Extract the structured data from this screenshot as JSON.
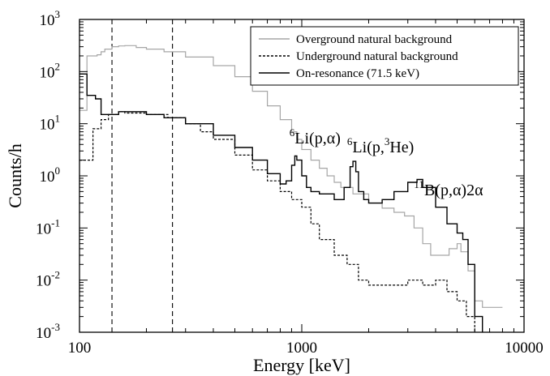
{
  "chart_data": {
    "type": "line",
    "title": "",
    "xlabel": "Energy [keV]",
    "ylabel": "Counts/h",
    "x_scale": "log",
    "y_scale": "log",
    "xlim": [
      100,
      10000
    ],
    "ylim": [
      0.001,
      1000
    ],
    "x_ticks": [
      {
        "value": 100,
        "label": "100"
      },
      {
        "value": 1000,
        "label": "1000"
      },
      {
        "value": 10000,
        "label": "10000"
      }
    ],
    "y_ticks": [
      {
        "value": 0.001,
        "base": "10",
        "exp": "-3"
      },
      {
        "value": 0.01,
        "base": "10",
        "exp": "-2"
      },
      {
        "value": 0.1,
        "base": "10",
        "exp": "-1"
      },
      {
        "value": 1,
        "base": "10",
        "exp": "0"
      },
      {
        "value": 10,
        "base": "10",
        "exp": "1"
      },
      {
        "value": 100,
        "base": "10",
        "exp": "2"
      },
      {
        "value": 1000,
        "base": "10",
        "exp": "3"
      }
    ],
    "grid": false,
    "legend_position": "top-right",
    "vertical_lines": [
      {
        "x": 140,
        "style": "dashed"
      },
      {
        "x": 262,
        "style": "dashed"
      }
    ],
    "series": [
      {
        "name": "Overground natural background",
        "color": "#a6a6a6",
        "dash": "solid",
        "points": [
          [
            100,
            18
          ],
          [
            108,
            200
          ],
          [
            118,
            200
          ],
          [
            120,
            210
          ],
          [
            125,
            240
          ],
          [
            130,
            270
          ],
          [
            140,
            300
          ],
          [
            150,
            310
          ],
          [
            160,
            315
          ],
          [
            180,
            290
          ],
          [
            200,
            270
          ],
          [
            240,
            240
          ],
          [
            300,
            190
          ],
          [
            400,
            130
          ],
          [
            500,
            80
          ],
          [
            600,
            42
          ],
          [
            700,
            22
          ],
          [
            800,
            12
          ],
          [
            900,
            7
          ],
          [
            950,
            5
          ],
          [
            1000,
            3.2
          ],
          [
            1100,
            2.0
          ],
          [
            1200,
            1.4
          ],
          [
            1300,
            1.0
          ],
          [
            1400,
            0.75
          ],
          [
            1500,
            0.6
          ],
          [
            1700,
            0.45
          ],
          [
            2000,
            0.3
          ],
          [
            2300,
            0.24
          ],
          [
            2600,
            0.2
          ],
          [
            2900,
            0.17
          ],
          [
            3200,
            0.1
          ],
          [
            3500,
            0.05
          ],
          [
            3800,
            0.03
          ],
          [
            4200,
            0.03
          ],
          [
            4600,
            0.04
          ],
          [
            5000,
            0.05
          ],
          [
            5200,
            0.035
          ],
          [
            5600,
            0.015
          ],
          [
            6000,
            0.004
          ],
          [
            6500,
            0.003
          ],
          [
            7000,
            0.003
          ],
          [
            7500,
            0.003
          ],
          [
            8000,
            0.003
          ]
        ]
      },
      {
        "name": "Underground natural background",
        "color": "#000000",
        "dash": "dashed",
        "points": [
          [
            100,
            2
          ],
          [
            115,
            8
          ],
          [
            125,
            12
          ],
          [
            135,
            15
          ],
          [
            150,
            17
          ],
          [
            160,
            16
          ],
          [
            200,
            15
          ],
          [
            250,
            13
          ],
          [
            300,
            10
          ],
          [
            350,
            7
          ],
          [
            400,
            5
          ],
          [
            500,
            2.5
          ],
          [
            600,
            1.3
          ],
          [
            700,
            0.8
          ],
          [
            800,
            0.5
          ],
          [
            900,
            0.35
          ],
          [
            1000,
            0.25
          ],
          [
            1100,
            0.12
          ],
          [
            1200,
            0.06
          ],
          [
            1400,
            0.03
          ],
          [
            1600,
            0.02
          ],
          [
            1800,
            0.01
          ],
          [
            2000,
            0.008
          ],
          [
            2500,
            0.008
          ],
          [
            3000,
            0.01
          ],
          [
            3500,
            0.008
          ],
          [
            4000,
            0.01
          ],
          [
            4500,
            0.006
          ],
          [
            5000,
            0.004
          ],
          [
            5500,
            0.002
          ],
          [
            6000,
            0.001
          ]
        ]
      },
      {
        "name": "On-resonance (71.5 keV)",
        "color": "#000000",
        "dash": "solid",
        "points": [
          [
            100,
            90
          ],
          [
            108,
            35
          ],
          [
            118,
            30
          ],
          [
            125,
            15
          ],
          [
            150,
            17
          ],
          [
            200,
            15
          ],
          [
            240,
            13
          ],
          [
            300,
            10
          ],
          [
            400,
            6
          ],
          [
            500,
            3.5
          ],
          [
            600,
            2
          ],
          [
            700,
            1.1
          ],
          [
            800,
            0.7
          ],
          [
            850,
            0.8
          ],
          [
            900,
            1.6
          ],
          [
            930,
            2.4
          ],
          [
            950,
            2.0
          ],
          [
            1000,
            1.0
          ],
          [
            1050,
            0.6
          ],
          [
            1100,
            0.5
          ],
          [
            1200,
            0.45
          ],
          [
            1400,
            0.35
          ],
          [
            1550,
            0.6
          ],
          [
            1650,
            1.5
          ],
          [
            1700,
            1.9
          ],
          [
            1750,
            1.2
          ],
          [
            1800,
            0.5
          ],
          [
            1900,
            0.35
          ],
          [
            2000,
            0.3
          ],
          [
            2300,
            0.35
          ],
          [
            2600,
            0.5
          ],
          [
            3000,
            0.75
          ],
          [
            3300,
            0.85
          ],
          [
            3500,
            0.6
          ],
          [
            4000,
            0.25
          ],
          [
            4500,
            0.12
          ],
          [
            5000,
            0.08
          ],
          [
            5300,
            0.06
          ],
          [
            5600,
            0.02
          ],
          [
            6000,
            0.002
          ],
          [
            6500,
            0.001
          ]
        ]
      }
    ],
    "annotations": [
      {
        "id": "li6-palpha",
        "x": 880,
        "y": 4.2,
        "pre_sup": "6",
        "text": "Li(p,α)"
      },
      {
        "id": "li6-phe3",
        "x": 1600,
        "y": 2.8,
        "pre_sup": "6",
        "text": "Li(p,",
        "mid_sup": "3",
        "post": "He)"
      },
      {
        "id": "b11-palpha",
        "x": 3200,
        "y": 0.42,
        "pre_sup": "11",
        "text": "B(p,α)2α"
      }
    ]
  }
}
